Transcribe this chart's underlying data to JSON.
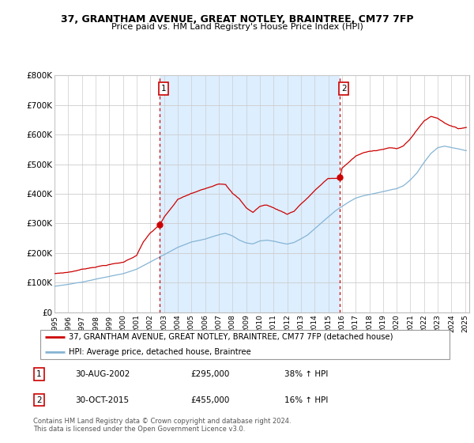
{
  "title": "37, GRANTHAM AVENUE, GREAT NOTLEY, BRAINTREE, CM77 7FP",
  "subtitle": "Price paid vs. HM Land Registry's House Price Index (HPI)",
  "legend_line1": "37, GRANTHAM AVENUE, GREAT NOTLEY, BRAINTREE, CM77 7FP (detached house)",
  "legend_line2": "HPI: Average price, detached house, Braintree",
  "footnote": "Contains HM Land Registry data © Crown copyright and database right 2024.\nThis data is licensed under the Open Government Licence v3.0.",
  "transaction1_date": "30-AUG-2002",
  "transaction1_price": "£295,000",
  "transaction1_hpi": "38% ↑ HPI",
  "transaction2_date": "30-OCT-2015",
  "transaction2_price": "£455,000",
  "transaction2_hpi": "16% ↑ HPI",
  "ylim": [
    0,
    800000
  ],
  "yticks": [
    0,
    100000,
    200000,
    300000,
    400000,
    500000,
    600000,
    700000,
    800000
  ],
  "red_color": "#cc0000",
  "blue_color": "#85b4d4",
  "shade_color": "#ddeeff",
  "vline_color": "#cc0000",
  "marker1_year": 2002.67,
  "marker2_year": 2015.83,
  "dot1_price": 295000,
  "dot2_price": 455000
}
